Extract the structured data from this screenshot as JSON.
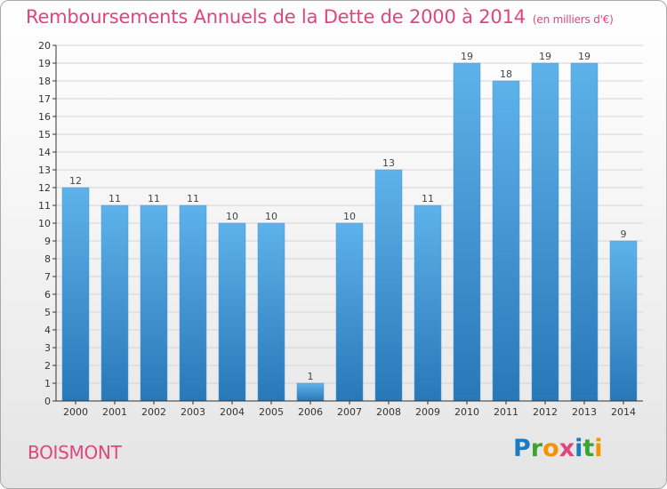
{
  "header": {
    "title": "Remboursements Annuels de la Dette de 2000 à 2014",
    "unit": "(en milliers d'€)"
  },
  "commune": "BOISMONT",
  "logo": {
    "text": "Proxiti",
    "letters": [
      "P",
      "r",
      "o",
      "x",
      "i",
      "t",
      "i"
    ],
    "colors": [
      "#1a7bc4",
      "#3aa535",
      "#f29400",
      "#e0457b",
      "#1a7bc4",
      "#3aa535",
      "#f29400"
    ]
  },
  "colors": {
    "title": "#e0457b",
    "bar_top": "#5eb2ea",
    "bar_bottom": "#2878b8",
    "grid": "#d4d4d4",
    "axis": "#333333"
  },
  "chart_data": {
    "type": "bar",
    "title": "Remboursements Annuels de la Dette de 2000 à 2014",
    "xlabel": "",
    "ylabel": "(en milliers d'€)",
    "categories": [
      "2000",
      "2001",
      "2002",
      "2003",
      "2004",
      "2005",
      "2006",
      "2007",
      "2008",
      "2009",
      "2010",
      "2011",
      "2012",
      "2013",
      "2014"
    ],
    "values": [
      12,
      11,
      11,
      11,
      10,
      10,
      1,
      10,
      13,
      11,
      19,
      18,
      19,
      19,
      9
    ],
    "ylim": [
      0,
      20
    ],
    "yticks": [
      0,
      1,
      2,
      3,
      4,
      5,
      6,
      7,
      8,
      9,
      10,
      11,
      12,
      13,
      14,
      15,
      16,
      17,
      18,
      19,
      20
    ],
    "grid": true,
    "legend": "none"
  }
}
